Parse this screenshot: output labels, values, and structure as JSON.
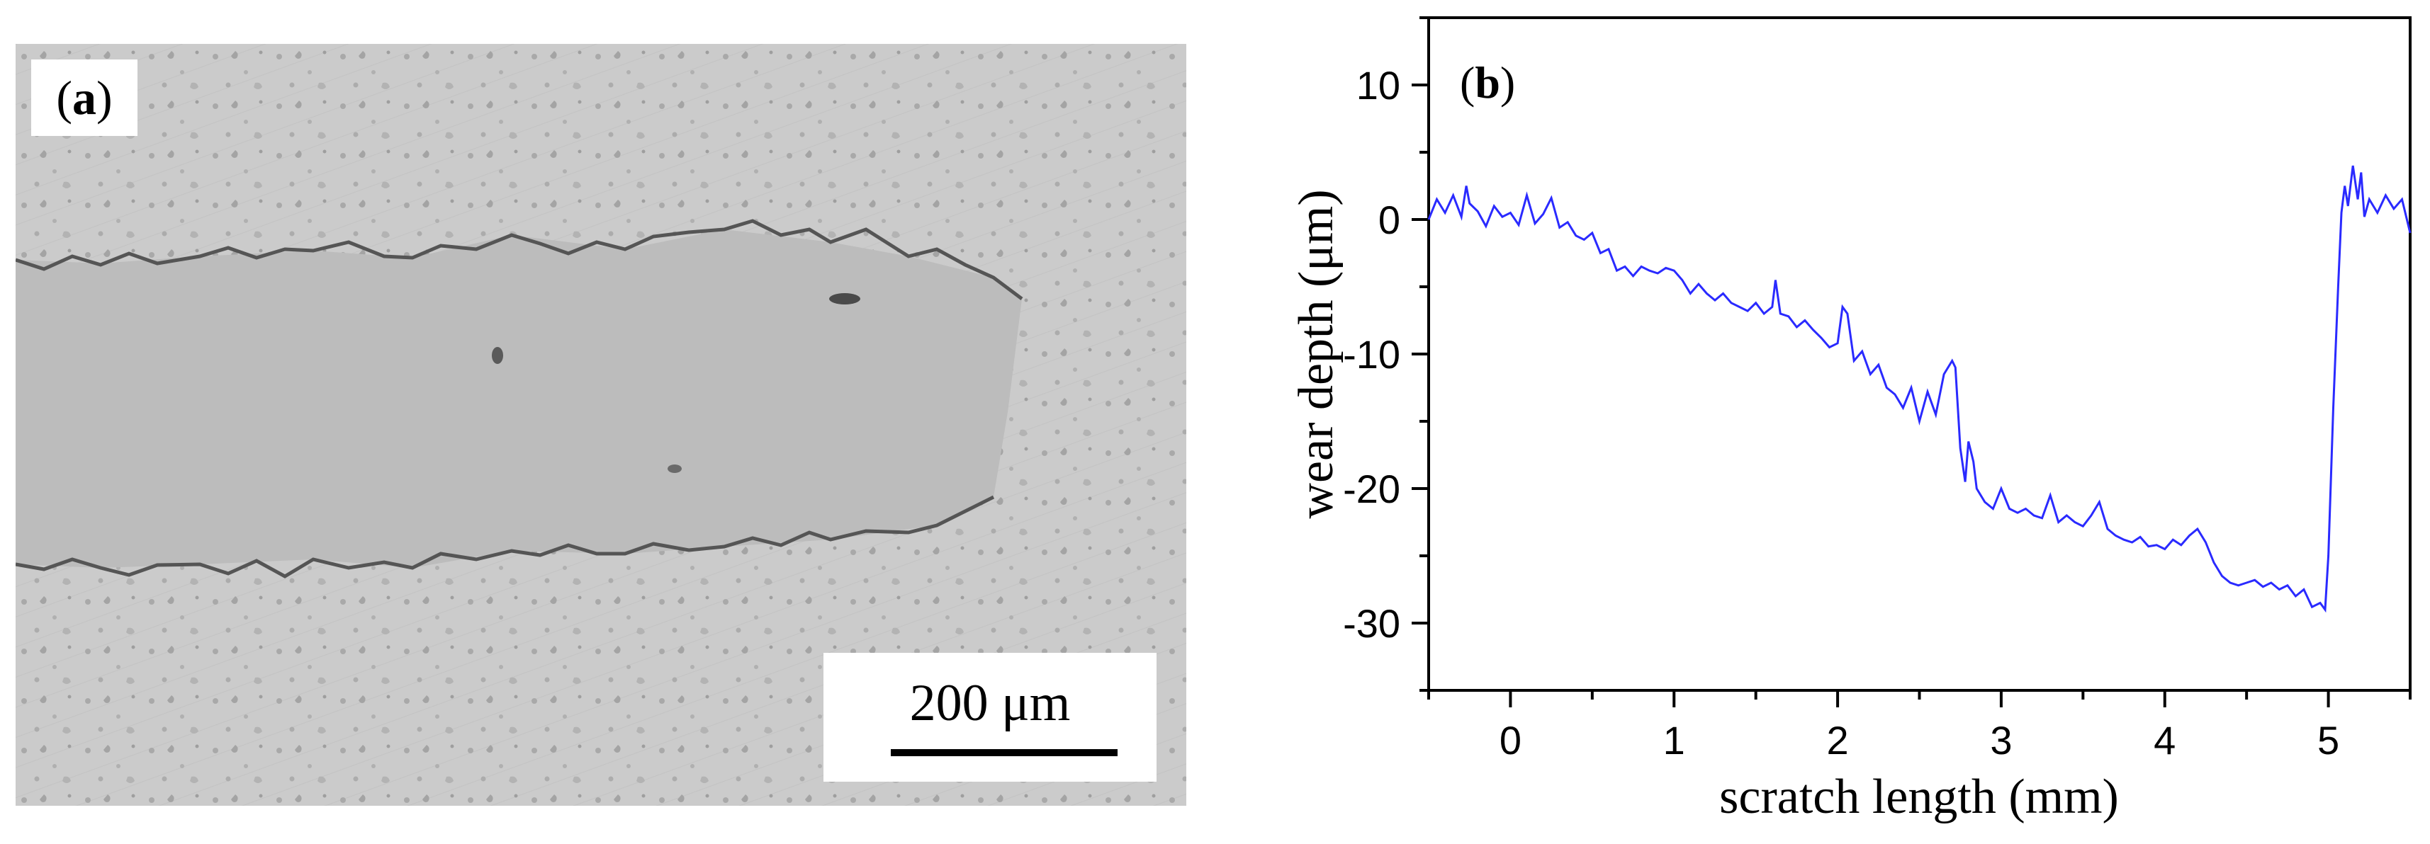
{
  "panel_a": {
    "label_open": "(",
    "label_letter": "a",
    "label_close": ")",
    "scale_bar_text": "200 μm",
    "colors": {
      "background": "#c9c9c9",
      "track": "#b9b9b9",
      "edge": "#5a5a5a"
    }
  },
  "panel_b": {
    "label_open": "(",
    "label_letter": "b",
    "label_close": ")"
  },
  "chart_data": {
    "type": "line",
    "title": "",
    "xlabel": "scratch length (mm)",
    "ylabel": "wear depth (μm)",
    "xlim": [
      -0.5,
      5.5
    ],
    "ylim": [
      -35,
      15
    ],
    "xticks": [
      0,
      1,
      2,
      3,
      4,
      5
    ],
    "yticks": [
      10,
      0,
      -10,
      -20,
      -30
    ],
    "line_color": "#2a2aff",
    "series": [
      {
        "name": "wear depth",
        "x": [
          -0.5,
          -0.45,
          -0.4,
          -0.35,
          -0.3,
          -0.27,
          -0.25,
          -0.2,
          -0.15,
          -0.1,
          -0.05,
          0.0,
          0.05,
          0.1,
          0.15,
          0.2,
          0.25,
          0.3,
          0.35,
          0.4,
          0.45,
          0.5,
          0.55,
          0.6,
          0.65,
          0.7,
          0.75,
          0.8,
          0.85,
          0.9,
          0.95,
          1.0,
          1.05,
          1.1,
          1.15,
          1.2,
          1.25,
          1.3,
          1.35,
          1.4,
          1.45,
          1.5,
          1.55,
          1.6,
          1.62,
          1.65,
          1.7,
          1.75,
          1.8,
          1.85,
          1.9,
          1.95,
          2.0,
          2.03,
          2.06,
          2.1,
          2.15,
          2.2,
          2.25,
          2.3,
          2.35,
          2.4,
          2.45,
          2.5,
          2.55,
          2.6,
          2.65,
          2.7,
          2.72,
          2.75,
          2.78,
          2.8,
          2.83,
          2.85,
          2.9,
          2.95,
          3.0,
          3.05,
          3.1,
          3.15,
          3.2,
          3.25,
          3.3,
          3.35,
          3.4,
          3.45,
          3.5,
          3.55,
          3.6,
          3.65,
          3.7,
          3.75,
          3.8,
          3.85,
          3.9,
          3.95,
          4.0,
          4.05,
          4.1,
          4.15,
          4.2,
          4.25,
          4.3,
          4.35,
          4.4,
          4.45,
          4.5,
          4.55,
          4.6,
          4.65,
          4.7,
          4.75,
          4.8,
          4.85,
          4.9,
          4.95,
          4.98,
          5.0,
          5.03,
          5.06,
          5.08,
          5.1,
          5.12,
          5.15,
          5.18,
          5.2,
          5.22,
          5.25,
          5.3,
          5.35,
          5.4,
          5.45,
          5.5
        ],
        "y": [
          0,
          1.5,
          0.5,
          1.8,
          0.2,
          2.5,
          1.2,
          0.6,
          -0.5,
          1.0,
          0.2,
          0.5,
          -0.4,
          1.8,
          -0.3,
          0.4,
          1.6,
          -0.6,
          -0.2,
          -1.2,
          -1.5,
          -1.0,
          -2.5,
          -2.2,
          -3.8,
          -3.5,
          -4.2,
          -3.5,
          -3.8,
          -4.0,
          -3.6,
          -3.8,
          -4.5,
          -5.5,
          -4.8,
          -5.5,
          -6.0,
          -5.5,
          -6.2,
          -6.5,
          -6.8,
          -6.2,
          -7.0,
          -6.5,
          -4.5,
          -7.0,
          -7.2,
          -8.0,
          -7.5,
          -8.2,
          -8.8,
          -9.5,
          -9.2,
          -6.5,
          -7.0,
          -10.5,
          -9.8,
          -11.5,
          -10.8,
          -12.5,
          -13.0,
          -14.0,
          -12.5,
          -15.0,
          -12.8,
          -14.5,
          -11.5,
          -10.5,
          -11.0,
          -17.0,
          -19.5,
          -16.5,
          -18.0,
          -20.0,
          -21.0,
          -21.5,
          -20.0,
          -21.5,
          -21.8,
          -21.5,
          -22.0,
          -22.2,
          -20.5,
          -22.5,
          -22.0,
          -22.5,
          -22.8,
          -22.0,
          -21.0,
          -23.0,
          -23.5,
          -23.8,
          -24.0,
          -23.6,
          -24.3,
          -24.2,
          -24.5,
          -23.8,
          -24.2,
          -23.5,
          -23.0,
          -24.0,
          -25.5,
          -26.5,
          -27.0,
          -27.2,
          -27.0,
          -26.8,
          -27.3,
          -27.0,
          -27.5,
          -27.2,
          -28.0,
          -27.5,
          -28.8,
          -28.5,
          -29.0,
          -25.0,
          -14.0,
          -5.0,
          0.5,
          2.5,
          1.0,
          4.0,
          1.5,
          3.5,
          0.2,
          1.5,
          0.5,
          1.8,
          0.8,
          1.5,
          -1.0
        ]
      }
    ]
  }
}
